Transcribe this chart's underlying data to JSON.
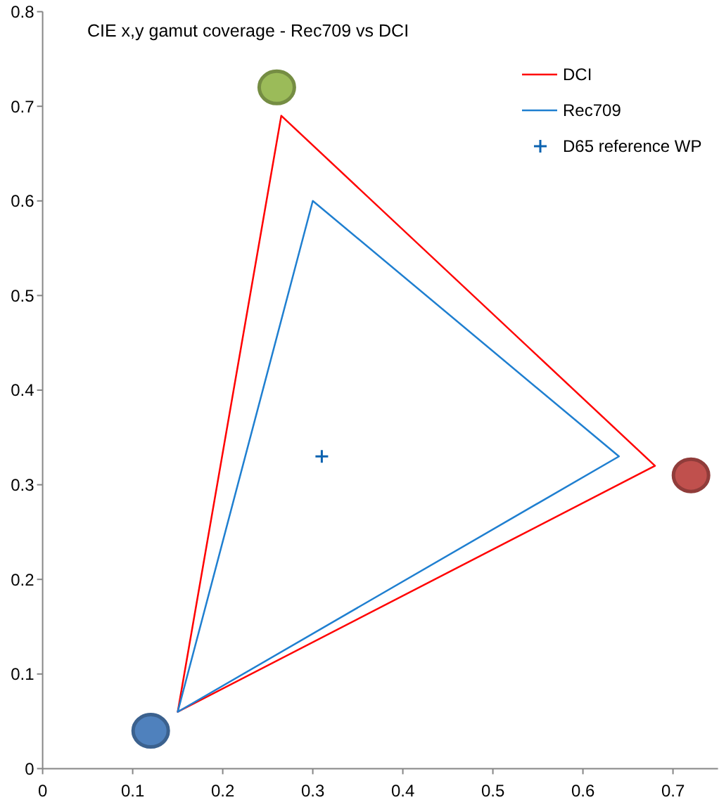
{
  "chart_data": {
    "type": "scatter",
    "title": "CIE x,y gamut coverage - Rec709 vs DCI",
    "xlim": [
      0,
      0.75
    ],
    "xticks": [
      0,
      0.1,
      0.2,
      0.3,
      0.4,
      0.5,
      0.6,
      0.7
    ],
    "ylim": [
      0,
      0.8
    ],
    "yticks": [
      0,
      0.1,
      0.2,
      0.3,
      0.4,
      0.5,
      0.6,
      0.7,
      0.8
    ],
    "legend": "top right",
    "series": [
      {
        "name": "DCI",
        "type": "line",
        "marker": "none",
        "color": "#ff0000",
        "x": [
          0.68,
          0.265,
          0.15,
          0.68
        ],
        "values": [
          0.32,
          0.69,
          0.06,
          0.32
        ]
      },
      {
        "name": "Rec709",
        "type": "line",
        "marker": "none",
        "color": "#1f7fd0",
        "x": [
          0.64,
          0.3,
          0.15,
          0.64
        ],
        "values": [
          0.33,
          0.6,
          0.06,
          0.33
        ]
      },
      {
        "name": "D65 reference WP",
        "marker": "cross",
        "color": "#0b62b0",
        "x": [
          0.31
        ],
        "values": [
          0.33
        ]
      },
      {
        "marker": "circle",
        "colors": [
          "#9bbb59",
          "#c0504d",
          "#4f81bd"
        ],
        "x": [
          0.26,
          0.72,
          0.12
        ],
        "values": [
          0.72,
          0.31,
          0.04
        ]
      }
    ]
  }
}
